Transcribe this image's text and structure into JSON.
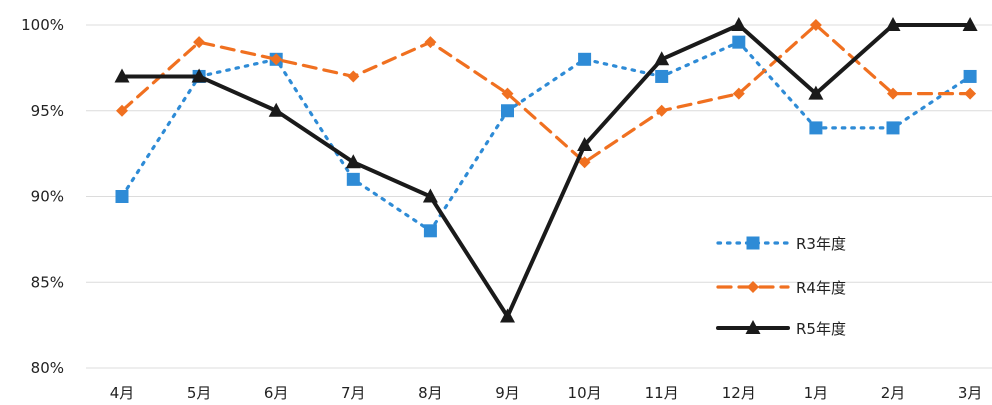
{
  "chart_data": {
    "type": "line",
    "categories": [
      "4月",
      "5月",
      "6月",
      "7月",
      "8月",
      "9月",
      "10月",
      "11月",
      "12月",
      "1月",
      "2月",
      "3月"
    ],
    "series": [
      {
        "name": "R3年度",
        "values": [
          90,
          97,
          98,
          91,
          88,
          95,
          98,
          97,
          99,
          94,
          94,
          97
        ],
        "color": "#2e8bd6",
        "line_style": "dotted",
        "marker": "square"
      },
      {
        "name": "R4年度",
        "values": [
          95,
          99,
          98,
          97,
          99,
          96,
          92,
          95,
          96,
          100,
          96,
          96
        ],
        "color": "#f07020",
        "line_style": "dashed",
        "marker": "diamond"
      },
      {
        "name": "R5年度",
        "values": [
          97,
          97,
          95,
          92,
          90,
          83,
          93,
          98,
          100,
          96,
          100,
          100
        ],
        "color": "#1a1a1a",
        "line_style": "solid",
        "marker": "triangle"
      }
    ],
    "yticks": [
      "80%",
      "85%",
      "90%",
      "95%",
      "100%"
    ],
    "ytick_values": [
      80,
      85,
      90,
      95,
      100
    ],
    "ylim": [
      80,
      100
    ],
    "title": "",
    "xlabel": "",
    "ylabel": "",
    "grid": true,
    "legend_position": "right"
  }
}
